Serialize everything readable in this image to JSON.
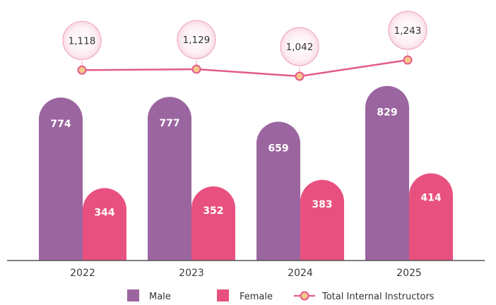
{
  "chart_data": {
    "type": "bar",
    "categories": [
      "2022",
      "2023",
      "2024",
      "2025"
    ],
    "series": [
      {
        "name": "Male",
        "type": "bar",
        "color": "#9b65a0",
        "values": [
          774,
          777,
          659,
          829
        ]
      },
      {
        "name": "Female",
        "type": "bar",
        "color": "#e8517f",
        "values": [
          344,
          352,
          383,
          414
        ]
      },
      {
        "name": "Total Internal Instructors",
        "type": "line",
        "color": "#e35a8c",
        "marker_color": "#f7c88a",
        "values": [
          1118,
          1129,
          1042,
          1243
        ],
        "labels": [
          "1,118",
          "1,129",
          "1,042",
          "1,243"
        ]
      }
    ],
    "bar_labels": {
      "Male": [
        "774",
        "777",
        "659",
        "829"
      ],
      "Female": [
        "344",
        "352",
        "383",
        "414"
      ]
    },
    "grid": false,
    "legend_position": "bottom"
  }
}
